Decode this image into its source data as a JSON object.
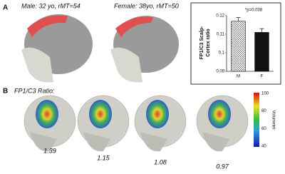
{
  "panel_a": {
    "label": "A",
    "male_caption": "Male: 32 yo, rMT=54",
    "female_caption": "Female: 38yo, rMT=50"
  },
  "chart_data": {
    "type": "bar",
    "ylabel": "FP1/C3 Scalp-\nCortex ratio",
    "annotation": "*p=0.038",
    "categories": [
      "M",
      "F"
    ],
    "values": [
      0.117,
      0.111
    ],
    "errors": [
      0.002,
      0.002
    ],
    "colors": [
      "#ffffff",
      "#111111"
    ],
    "ylim": [
      0.09,
      0.12
    ],
    "yticks": [
      0.09,
      0.1,
      0.11,
      0.12
    ]
  },
  "panel_b": {
    "label": "B",
    "caption": "FP1/C3 Ratio:",
    "ratios": [
      1.39,
      1.15,
      1.08,
      0.97
    ],
    "colorbar": {
      "ticks": [
        100,
        80,
        60,
        40
      ],
      "label": "Volumeter"
    }
  }
}
